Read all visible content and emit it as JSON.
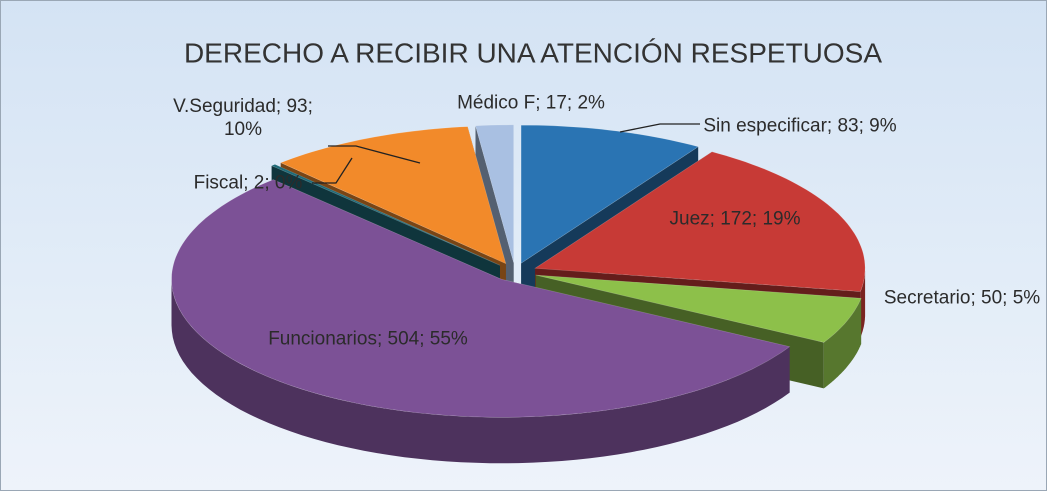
{
  "chart_data": {
    "type": "pie3d",
    "title": "DERECHO A RECIBIR UNA ATENCIÓN RESPETUOSA",
    "values": [
      83,
      172,
      50,
      504,
      2,
      93,
      17
    ],
    "value_labels": [
      "Sin especificar; 83; 9%",
      "Juez; 172; 19%",
      "Secretario; 50; 5%",
      "Funcionarios; 504; 55%",
      "Fiscal; 2; 0%",
      "V.Seguridad; 93; 10%",
      "Médico F; 17; 2%"
    ],
    "colors": [
      "#2a74b3",
      "#c73a36",
      "#8dc04a",
      "#7c5196",
      "#1e6a78",
      "#f28a2a",
      "#a9c0e2"
    ]
  }
}
